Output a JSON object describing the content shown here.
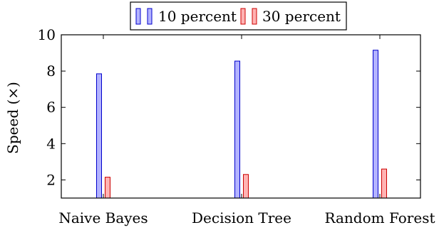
{
  "chart_data": {
    "type": "bar",
    "categories": [
      "Naive Bayes",
      "Decision Tree",
      "Random Forest"
    ],
    "series": [
      {
        "name": "10 percent",
        "values": [
          7.85,
          8.55,
          9.15
        ],
        "fill": "#b3b3ff",
        "stroke": "#0000cc"
      },
      {
        "name": "30 percent",
        "values": [
          2.15,
          2.3,
          2.6
        ],
        "fill": "#ffb3b3",
        "stroke": "#cc0000"
      }
    ],
    "ylabel": "Speed (×)",
    "ylim": [
      1,
      10
    ],
    "yticks": [
      2,
      4,
      6,
      8,
      10
    ],
    "ytick_labels": [
      "2",
      "4",
      "6",
      "8",
      "10"
    ],
    "legend_position": "top-center",
    "grid": false
  }
}
